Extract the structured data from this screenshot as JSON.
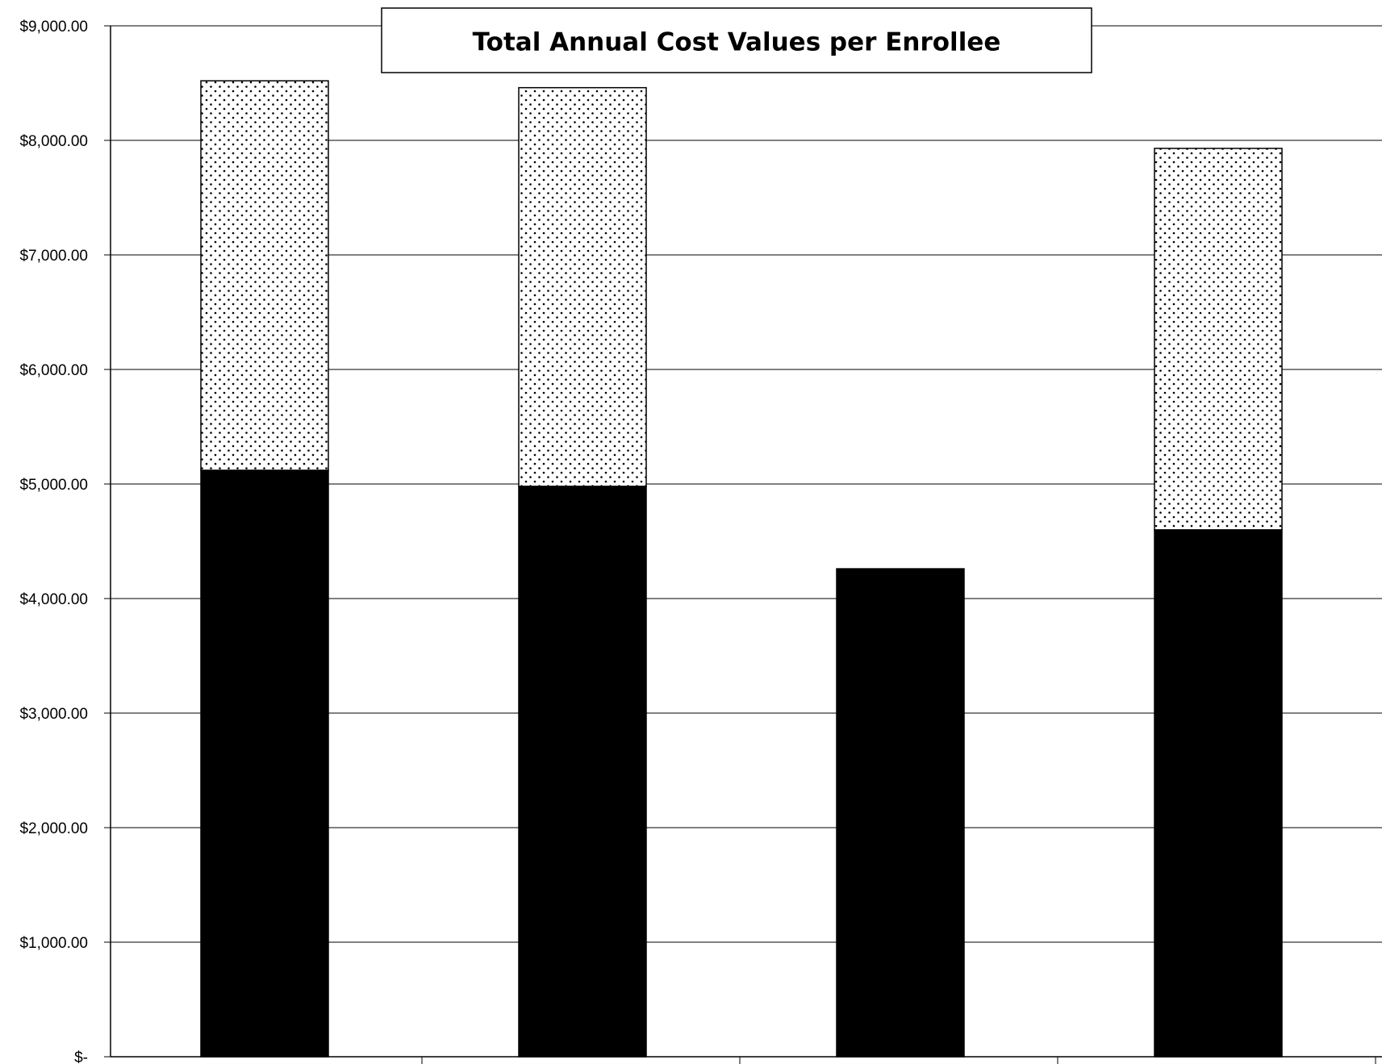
{
  "chart_data": {
    "type": "bar",
    "stacked": true,
    "title": "Total Annual Cost Values per Enrollee",
    "xlabel": "",
    "ylabel": "",
    "ylim": [
      0,
      9000
    ],
    "y_tick_labels": [
      "$-",
      "$1,000.00",
      "$2,000.00",
      "$3,000.00",
      "$4,000.00",
      "$5,000.00",
      "$6,000.00",
      "$7,000.00",
      "$8,000.00",
      "$9,000.00"
    ],
    "categories": [
      "",
      "",
      "",
      ""
    ],
    "grid": true,
    "series": [
      {
        "color": "#000000",
        "pattern": "solid",
        "values": [
          5120,
          4980,
          4260,
          4600
        ]
      },
      {
        "color": "#ffffff",
        "pattern": "dotted",
        "values": [
          3400,
          3480,
          0,
          3330
        ]
      }
    ]
  }
}
